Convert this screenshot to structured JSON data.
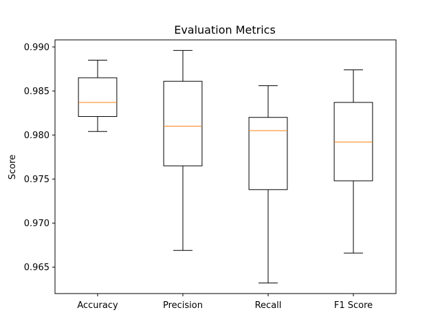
{
  "chart_data": {
    "type": "box",
    "title": "Evaluation Metrics",
    "xlabel": "",
    "ylabel": "Score",
    "ylim": [
      0.962,
      0.9908
    ],
    "yticks": [
      0.965,
      0.97,
      0.975,
      0.98,
      0.985,
      0.99
    ],
    "ytick_labels": [
      "0.965",
      "0.970",
      "0.975",
      "0.980",
      "0.985",
      "0.990"
    ],
    "grid": false,
    "box_color": "#000000",
    "median_color": "#ff7f0e",
    "categories": [
      "Accuracy",
      "Precision",
      "Recall",
      "F1 Score"
    ],
    "boxes": [
      {
        "whisker_low": 0.9804,
        "q1": 0.9821,
        "median": 0.9837,
        "q3": 0.9865,
        "whisker_high": 0.9885
      },
      {
        "whisker_low": 0.9669,
        "q1": 0.9765,
        "median": 0.981,
        "q3": 0.9861,
        "whisker_high": 0.9896
      },
      {
        "whisker_low": 0.9632,
        "q1": 0.9738,
        "median": 0.9805,
        "q3": 0.982,
        "whisker_high": 0.9856
      },
      {
        "whisker_low": 0.9666,
        "q1": 0.9748,
        "median": 0.9792,
        "q3": 0.9837,
        "whisker_high": 0.9874
      }
    ]
  }
}
